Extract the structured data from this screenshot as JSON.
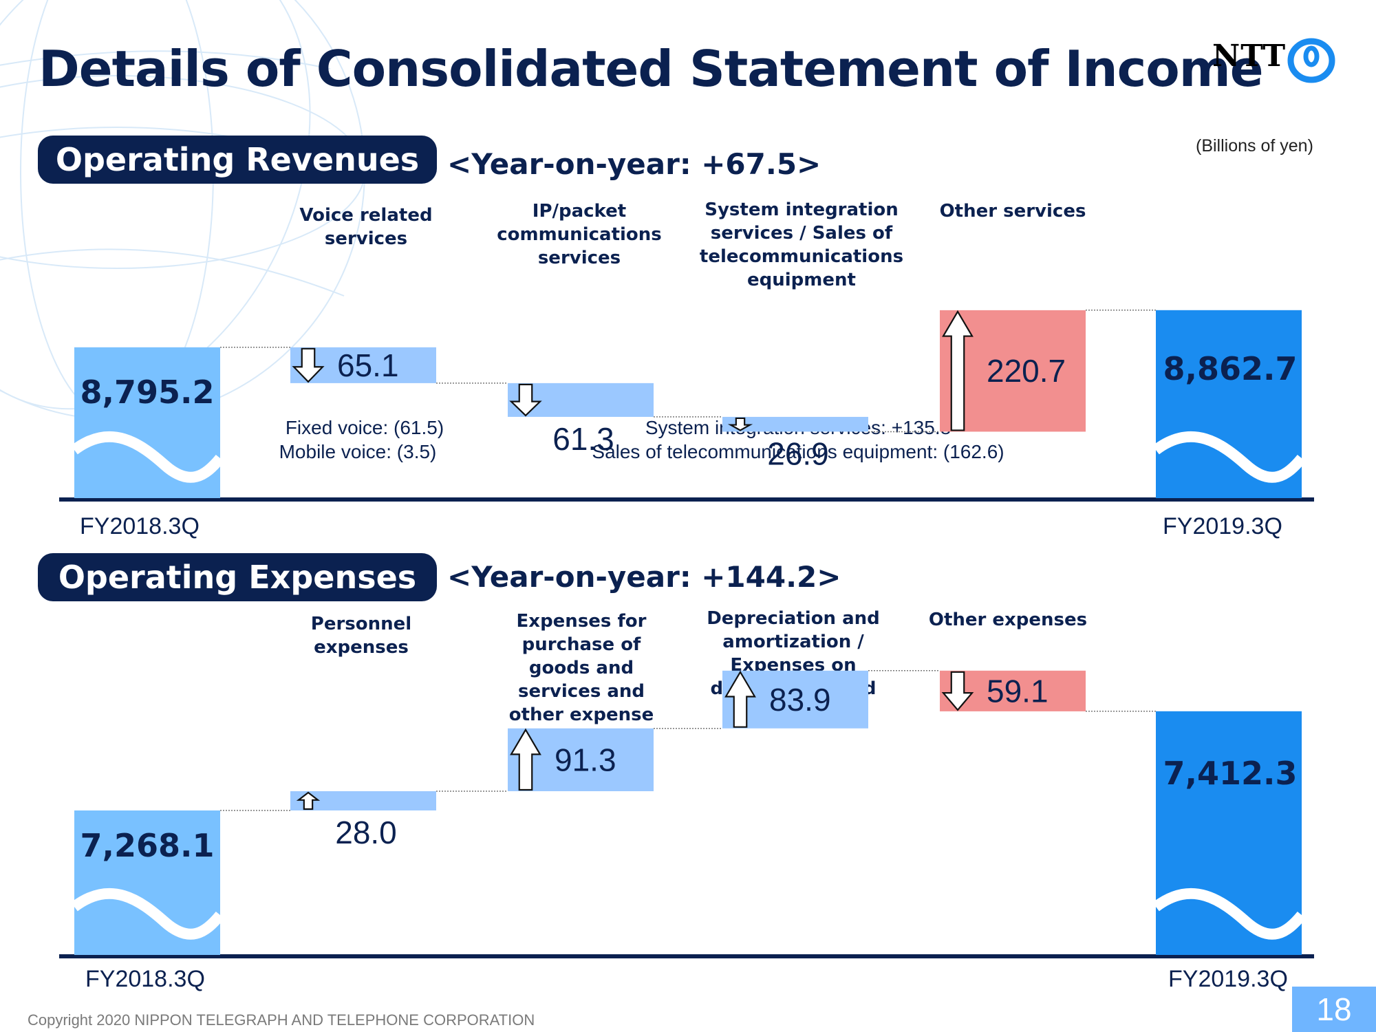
{
  "title": "Details of Consolidated Statement of Income",
  "logo": {
    "text": "NTT",
    "icon": "ntt-ring-logo-icon"
  },
  "units": "(Billions of yen)",
  "colors": {
    "navy": "#0b2150",
    "base_light": "#79c1ff",
    "base_dark": "#1a8cf0",
    "decrease": "#9bc8ff",
    "increase": "#f28f8f"
  },
  "revenues": {
    "heading": "Operating Revenues",
    "yoy": "<Year-on-year: +67.5>",
    "start": {
      "label": "FY2018.3Q",
      "value": 8795.2,
      "text": "8,795.2"
    },
    "end": {
      "label": "FY2019.3Q",
      "value": 8862.7,
      "text": "8,862.7"
    },
    "steps": [
      {
        "category": "Voice related services",
        "change": -65.1,
        "text": "65.1",
        "direction": "down"
      },
      {
        "category": "IP/packet communications services",
        "change": -61.3,
        "text": "61.3",
        "direction": "down"
      },
      {
        "category": "System integration services / Sales of telecommunications equipment",
        "change": -26.9,
        "text": "26.9",
        "direction": "down"
      },
      {
        "category": "Other services",
        "change": 220.7,
        "text": "220.7",
        "direction": "up"
      }
    ],
    "notes": {
      "voice": [
        "Fixed voice: (61.5)",
        "Mobile voice: (3.5)"
      ],
      "system": [
        "System integration services: +135.8",
        "Sales of telecommunications equipment: (162.6)"
      ]
    }
  },
  "expenses": {
    "heading": "Operating Expenses",
    "yoy": "<Year-on-year: +144.2>",
    "start": {
      "label": "FY2018.3Q",
      "value": 7268.1,
      "text": "7,268.1"
    },
    "end": {
      "label": "FY2019.3Q",
      "value": 7412.3,
      "text": "7,412.3"
    },
    "steps": [
      {
        "category": "Personnel expenses",
        "change": 28.0,
        "text": "28.0",
        "direction": "up"
      },
      {
        "category": "Expenses for purchase of goods and services and other expense",
        "change": 91.3,
        "text": "91.3",
        "direction": "up"
      },
      {
        "category": "Depreciation and amortization / Expenses on disposal of fixed assets",
        "change": 83.9,
        "text": "83.9",
        "direction": "up"
      },
      {
        "category": "Other expenses",
        "change": -59.1,
        "text": "59.1",
        "direction": "down"
      }
    ]
  },
  "footer": "Copyright 2020 NIPPON TELEGRAPH AND TELEPHONE CORPORATION",
  "page_number": "18",
  "chart_data": [
    {
      "type": "bar",
      "subtype": "waterfall",
      "title": "Operating Revenues",
      "categories": [
        "FY2018.3Q",
        "Voice related services",
        "IP/packet communications services",
        "System integration services / Sales of telecommunications equipment",
        "Other services",
        "FY2019.3Q"
      ],
      "values": [
        8795.2,
        -65.1,
        -61.3,
        -26.9,
        220.7,
        8862.7
      ]
    },
    {
      "type": "bar",
      "subtype": "waterfall",
      "title": "Operating Expenses",
      "categories": [
        "FY2018.3Q",
        "Personnel expenses",
        "Expenses for purchase of goods and services and other expense",
        "Depreciation and amortization / Expenses on disposal of fixed assets",
        "Other expenses",
        "FY2019.3Q"
      ],
      "values": [
        7268.1,
        28.0,
        91.3,
        83.9,
        -59.1,
        7412.3
      ]
    }
  ]
}
